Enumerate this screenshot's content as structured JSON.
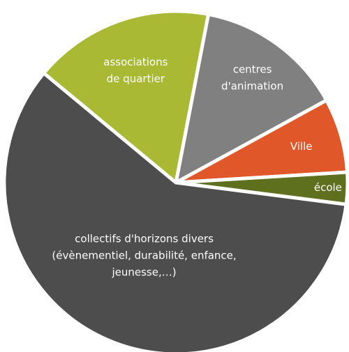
{
  "chart_data": {
    "type": "pie",
    "categories": [
      "centres\nd'animation",
      "Ville",
      "école",
      "collectifs d'horizons divers\n(évènementiel, durabilité, enfance,\njeunesse,…)",
      "associations\nde quartier"
    ],
    "values": [
      14,
      7,
      3,
      59,
      17
    ],
    "colors": [
      "#808080",
      "#e0582a",
      "#5e6f1e",
      "#4d4d4d",
      "#a9b934"
    ]
  }
}
